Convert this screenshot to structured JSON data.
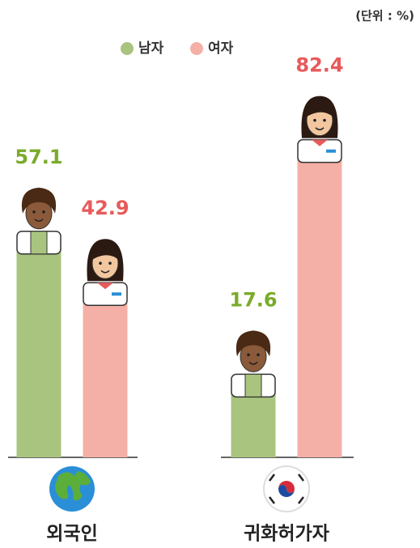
{
  "chart_data": {
    "type": "bar",
    "unit_label": "(단위 : %)",
    "categories": [
      "외국인",
      "귀화허가자"
    ],
    "series": [
      {
        "name": "남자",
        "color": "#a9c47f",
        "label_color": "#7aab2a",
        "values": [
          57.1,
          17.6
        ]
      },
      {
        "name": "여자",
        "color": "#f4b0a6",
        "label_color": "#e85a5a",
        "values": [
          42.9,
          82.4
        ]
      }
    ],
    "legend": "top"
  }
}
